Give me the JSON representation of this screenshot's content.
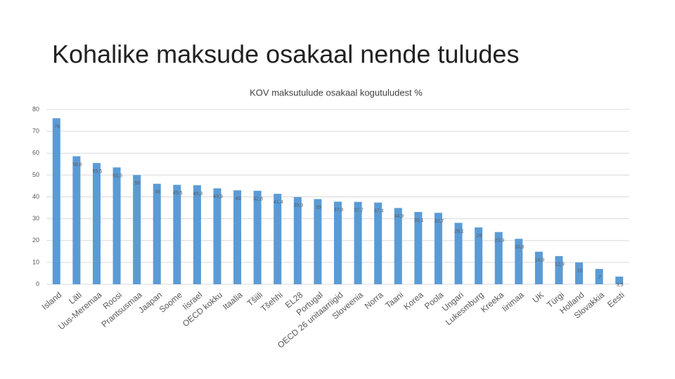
{
  "title": "Kohalike maksude osakaal nende tuludes",
  "chart_data": {
    "type": "bar",
    "title": "KOV maksutulude osakaal kogutuludest %",
    "categories": [
      "Island",
      "Läti",
      "Uus-Meremaa",
      "Roosi",
      "Prantsusmaa",
      "Jaapan",
      "Soome",
      "Iisrael",
      "OECD kokku",
      "Itaalia",
      "Tšiili",
      "Tšehhi",
      "EL28",
      "Portugal",
      "OECD 26 unitaarriigid",
      "Sloveenia",
      "Norra",
      "Taani",
      "Korea",
      "Poola",
      "Ungari",
      "Lukesmburg",
      "Kreeka",
      "Iirimaa",
      "UK",
      "Türgi",
      "Holland",
      "Slovakkia",
      "Eesti"
    ],
    "values": [
      76,
      58.6,
      55.5,
      53.5,
      50,
      46,
      45.5,
      45.3,
      43.9,
      43,
      42.8,
      41.4,
      39.9,
      39,
      37.8,
      37.7,
      37.4,
      34.9,
      33.1,
      32.7,
      28.1,
      26,
      23.9,
      20.8,
      14.9,
      12.9,
      10,
      7,
      3.5
    ],
    "value_labels": [
      "76",
      "58,6",
      "55,5",
      "53,5",
      "50",
      "46",
      "45,5",
      "45,3",
      "43,9",
      "43",
      "42,8",
      "41,4",
      "39,9",
      "39",
      "37,8",
      "37,7",
      "37,4",
      "34,9",
      "33,1",
      "32,7",
      "28,1",
      "26",
      "23,9",
      "20,8",
      "14,9",
      "12,9",
      "10",
      "7",
      "3,5"
    ],
    "color": "#5b9bd5",
    "ylim": [
      0,
      80
    ],
    "yticks": [
      0,
      10,
      20,
      30,
      40,
      50,
      60,
      70,
      80
    ],
    "grid": true
  }
}
